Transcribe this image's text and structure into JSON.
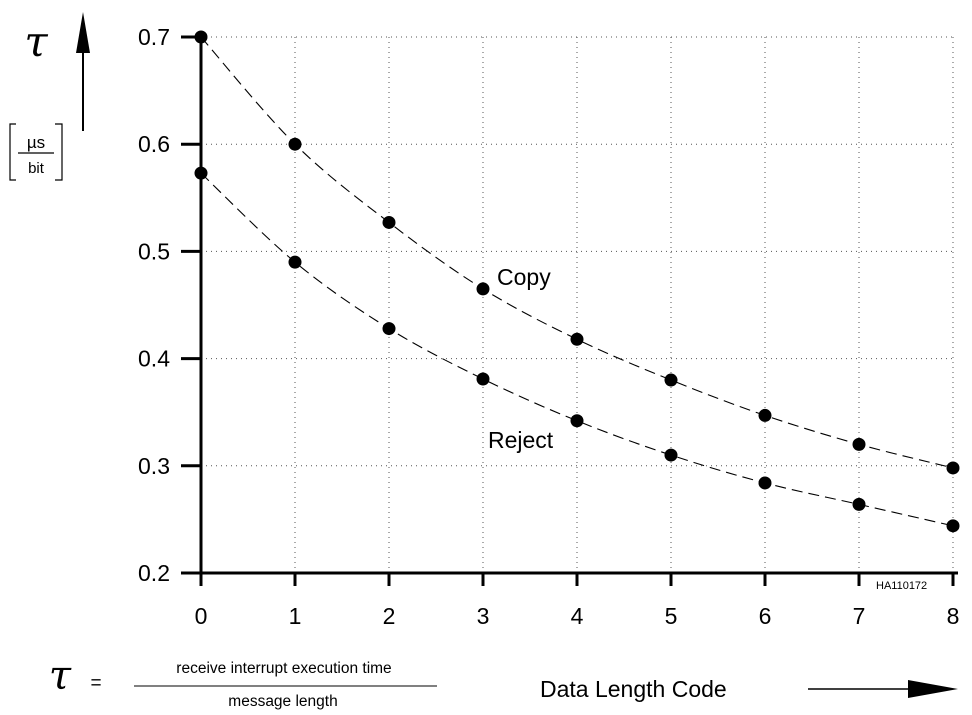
{
  "chart_data": {
    "type": "line",
    "y_symbol": "τ",
    "y_unit_numerator": "µs",
    "y_unit_denominator": "bit",
    "xlabel": "Data Length Code",
    "x_ticks": [
      "0",
      "1",
      "2",
      "3",
      "4",
      "5",
      "6",
      "7",
      "8"
    ],
    "y_ticks": [
      "0.2",
      "0.3",
      "0.4",
      "0.5",
      "0.6",
      "0.7"
    ],
    "xlim": [
      0,
      8
    ],
    "ylim": [
      0.2,
      0.7
    ],
    "grid": true,
    "line_style": "dashed",
    "x": [
      0,
      1,
      2,
      3,
      4,
      5,
      6,
      7,
      8
    ],
    "series": [
      {
        "name": "Copy",
        "values": [
          0.7,
          0.6,
          0.527,
          0.465,
          0.418,
          0.38,
          0.347,
          0.32,
          0.298
        ]
      },
      {
        "name": "Reject",
        "values": [
          0.573,
          0.49,
          0.428,
          0.381,
          0.342,
          0.31,
          0.284,
          0.264,
          0.244
        ]
      }
    ],
    "annotation_code": "HA110172",
    "formula": {
      "lhs": "τ",
      "equals": "=",
      "numerator": "receive interrupt execution time",
      "denominator": "message length"
    }
  }
}
